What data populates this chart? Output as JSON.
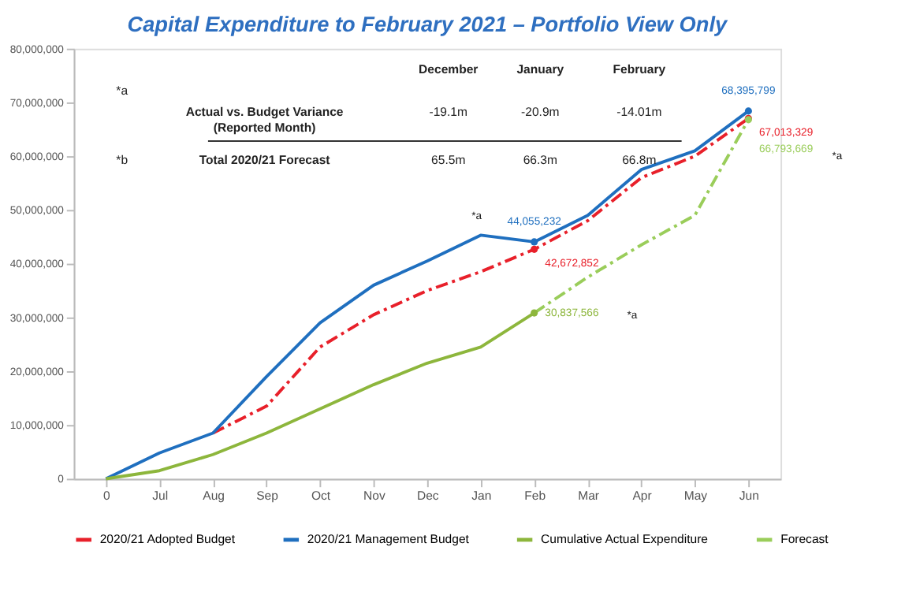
{
  "chart_data": {
    "type": "line",
    "title": "Capital Expenditure to February 2021 – Portfolio View Only",
    "categories": [
      "0",
      "Jul",
      "Aug",
      "Sep",
      "Oct",
      "Nov",
      "Dec",
      "Jan",
      "Feb",
      "Mar",
      "Apr",
      "May",
      "Jun"
    ],
    "series": [
      {
        "name": "2020/21 Adopted Budget",
        "color": "#e8202a",
        "line_style": "dashed",
        "values": [
          null,
          null,
          8500000,
          13500000,
          24500000,
          30500000,
          35000000,
          38500000,
          42672852,
          48000000,
          56000000,
          60000000,
          67013329
        ],
        "value_labels": [
          null,
          null,
          null,
          null,
          null,
          null,
          null,
          null,
          "42,672,852",
          null,
          null,
          null,
          "67,013,329"
        ]
      },
      {
        "name": "2020/21 Management Budget",
        "color": "#1f6fbf",
        "line_style": "solid",
        "values": [
          0,
          4800000,
          8500000,
          19000000,
          29000000,
          36000000,
          40500000,
          45300000,
          44055232,
          49000000,
          57500000,
          61000000,
          68395799
        ],
        "value_labels": [
          null,
          null,
          null,
          null,
          null,
          null,
          null,
          null,
          "44,055,232",
          null,
          null,
          null,
          "68,395,799"
        ]
      },
      {
        "name": "Cumulative Actual Expenditure",
        "color": "#8db63c",
        "line_style": "solid",
        "values": [
          0,
          1500000,
          4500000,
          8500000,
          13000000,
          17500000,
          21500000,
          24500000,
          30837566,
          null,
          null,
          null,
          null
        ],
        "value_labels": [
          null,
          null,
          null,
          null,
          null,
          null,
          null,
          null,
          "30,837,566",
          null,
          null,
          null,
          null
        ]
      },
      {
        "name": "Forecast",
        "color": "#9acd5a",
        "line_style": "dashed",
        "values": [
          null,
          null,
          null,
          null,
          null,
          null,
          null,
          null,
          30837566,
          37500000,
          43500000,
          49000000,
          66793669
        ],
        "value_labels": [
          null,
          null,
          null,
          null,
          null,
          null,
          null,
          null,
          null,
          null,
          null,
          null,
          "66,793,669"
        ]
      }
    ],
    "ylim": [
      0,
      80000000
    ],
    "yticks": [
      0,
      {
        "value": 10000000,
        "label": "10,000,000"
      },
      {
        "value": 20000000,
        "label": "20,000,000"
      },
      {
        "value": 30000000,
        "label": "30,000,000"
      },
      {
        "value": 40000000,
        "label": "40,000,000"
      },
      {
        "value": 50000000,
        "label": "50,000,000"
      },
      {
        "value": 60000000,
        "label": "60,000,000"
      },
      {
        "value": 70000000,
        "label": "70,000,000"
      },
      {
        "value": 80000000,
        "label": "80,000,000"
      }
    ],
    "grid": false,
    "legend": "bottom",
    "annotations": [
      "December",
      "January",
      "February",
      "*a",
      "Actual vs. Budget Variance\n(Reported Month)",
      "-19.1m",
      "-20.9m",
      "-14.01m",
      "*b",
      "Total 2020/21 Forecast",
      "65.5m",
      "66.3m",
      "66.8m",
      "*a",
      "*a",
      "*a"
    ]
  }
}
